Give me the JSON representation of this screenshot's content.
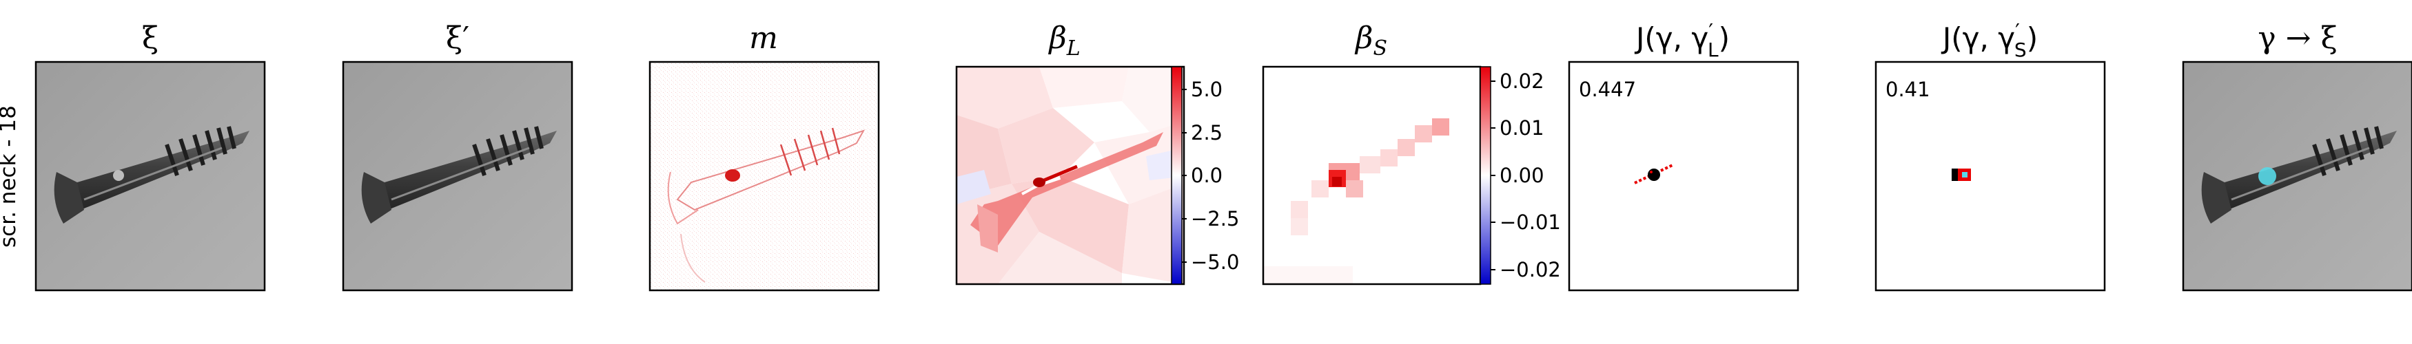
{
  "row_label": "scr. neck - 18",
  "panels": [
    {
      "id": "xi",
      "title": "ξ"
    },
    {
      "id": "xi_prime",
      "title": "ξ′"
    },
    {
      "id": "m",
      "title": "m"
    },
    {
      "id": "beta_L",
      "title_main": "β",
      "title_sub": "L",
      "colorbar_ticks": [
        "5.0",
        "2.5",
        "0.0",
        "−2.5",
        "−5.0"
      ]
    },
    {
      "id": "beta_S",
      "title_main": "β",
      "title_sub": "S",
      "colorbar_ticks": [
        "0.02",
        "0.01",
        "0.00",
        "−0.01",
        "−0.02"
      ]
    },
    {
      "id": "J_L",
      "title_pre": "J(γ, γ",
      "title_sup": "′",
      "title_sub": "L",
      "title_post": ")",
      "value": "0.447"
    },
    {
      "id": "J_S",
      "title_pre": "J(γ, γ",
      "title_sup": "′",
      "title_sub": "S",
      "title_post": ")",
      "value": "0.41"
    },
    {
      "id": "gamma_xi",
      "title": "γ → ξ"
    }
  ],
  "colors": {
    "diverging_pos": "#e8000b",
    "diverging_neg": "#0000c8",
    "highlight": "#58d9e8"
  }
}
